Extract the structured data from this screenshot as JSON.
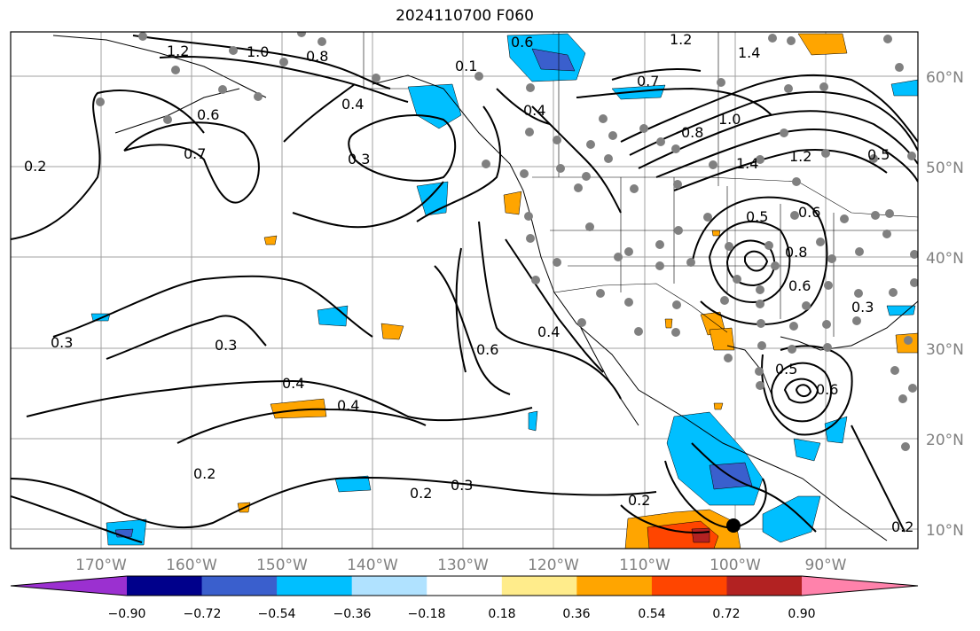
{
  "title": "2024110700 F060",
  "lat_labels": [
    "60°N",
    "50°N",
    "40°N",
    "30°N",
    "20°N",
    "10°N"
  ],
  "lon_labels": [
    "170°W",
    "160°W",
    "150°W",
    "140°W",
    "130°W",
    "120°W",
    "110°W",
    "100°W",
    "90°W"
  ],
  "colorbar": {
    "ticks": [
      "−0.90",
      "−0.72",
      "−0.54",
      "−0.36",
      "−0.18",
      "0.18",
      "0.36",
      "0.54",
      "0.72",
      "0.90"
    ],
    "colors": [
      "#9b30d0",
      "#00008b",
      "#3a5fcd",
      "#00bfff",
      "#b0e2ff",
      "#ffffff",
      "#ffec8b",
      "#ffa500",
      "#ff4500",
      "#b22222",
      "#ff82ab"
    ]
  },
  "contour_labels": [
    {
      "text": "1.2"
    },
    {
      "text": "1.0"
    },
    {
      "text": "0.8"
    },
    {
      "text": "0.6"
    },
    {
      "text": "0.7"
    },
    {
      "text": "0.2"
    },
    {
      "text": "0.4"
    },
    {
      "text": "0.3"
    },
    {
      "text": "0.1"
    },
    {
      "text": "0.6"
    },
    {
      "text": "0.4"
    },
    {
      "text": "0.7"
    },
    {
      "text": "0.8"
    },
    {
      "text": "1.0"
    },
    {
      "text": "1.4"
    },
    {
      "text": "1.2"
    },
    {
      "text": "1.4"
    },
    {
      "text": "1.2"
    },
    {
      "text": "0.5"
    },
    {
      "text": "0.6"
    },
    {
      "text": "0.8"
    },
    {
      "text": "0.6"
    },
    {
      "text": "0.5"
    },
    {
      "text": "0.3"
    },
    {
      "text": "0.3"
    },
    {
      "text": "0.3"
    },
    {
      "text": "0.4"
    },
    {
      "text": "0.4"
    },
    {
      "text": "0.6"
    },
    {
      "text": "0.4"
    },
    {
      "text": "0.3"
    },
    {
      "text": "0.2"
    },
    {
      "text": "0.2"
    },
    {
      "text": "0.2"
    },
    {
      "text": "0.5"
    },
    {
      "text": "0.6"
    },
    {
      "text": "0.2"
    }
  ],
  "colors": {
    "contour": "#000000",
    "grid": "#a0a0a0",
    "stations": "#808080",
    "marker": "#000000"
  }
}
